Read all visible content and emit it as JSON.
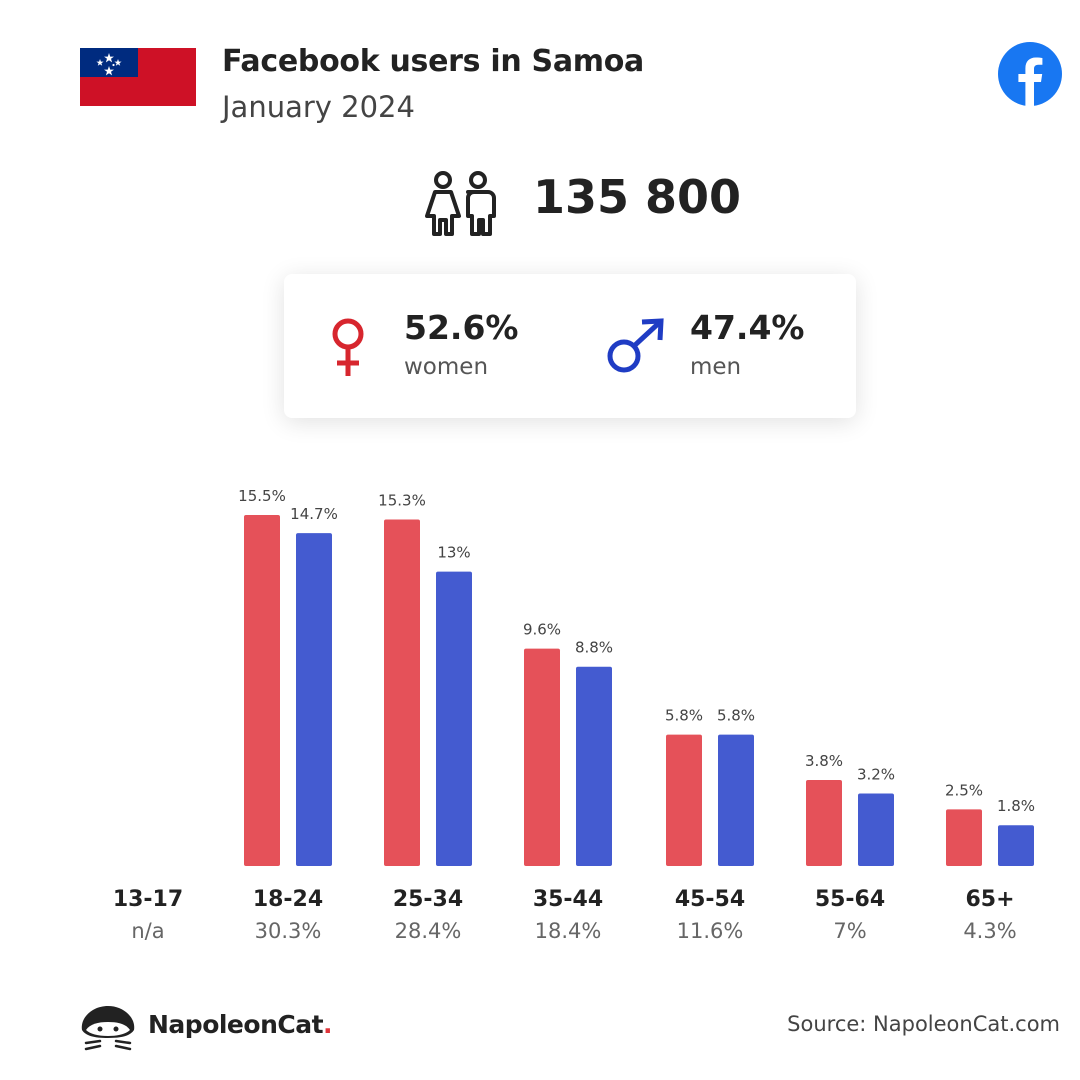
{
  "header": {
    "title": "Facebook users in Samoa",
    "subtitle": "January 2024"
  },
  "total_users": "135 800",
  "gender": {
    "women": {
      "percent": "52.6%",
      "label": "women"
    },
    "men": {
      "percent": "47.4%",
      "label": "men"
    }
  },
  "colors": {
    "women": "#e55159",
    "men": "#445bd0",
    "facebook": "#1877f2",
    "flag_red": "#ce1126",
    "flag_blue": "#002b7f"
  },
  "chart_data": {
    "type": "bar",
    "categories": [
      "13-17",
      "18-24",
      "25-34",
      "35-44",
      "45-54",
      "55-64",
      "65+"
    ],
    "group_totals": [
      "n/a",
      "30.3%",
      "28.4%",
      "18.4%",
      "11.6%",
      "7%",
      "4.3%"
    ],
    "series": [
      {
        "name": "women",
        "values": [
          null,
          15.5,
          15.3,
          9.6,
          5.8,
          3.8,
          2.5
        ],
        "labels": [
          "",
          "15.5%",
          "15.3%",
          "9.6%",
          "5.8%",
          "3.8%",
          "2.5%"
        ]
      },
      {
        "name": "men",
        "values": [
          null,
          14.7,
          13.0,
          8.8,
          5.8,
          3.2,
          1.8
        ],
        "labels": [
          "",
          "14.7%",
          "13%",
          "8.8%",
          "5.8%",
          "3.2%",
          "1.8%"
        ]
      }
    ],
    "grid": false
  },
  "footer": {
    "brand_name": "NapoleonCat",
    "brand_dot": ".",
    "source": "Source: NapoleonCat.com"
  },
  "icons": {
    "flag": "samoa-flag-icon",
    "facebook": "facebook-icon",
    "users": "users-icon",
    "female": "female-symbol-icon",
    "male": "male-symbol-icon",
    "brand": "napoleoncat-logo-icon"
  }
}
